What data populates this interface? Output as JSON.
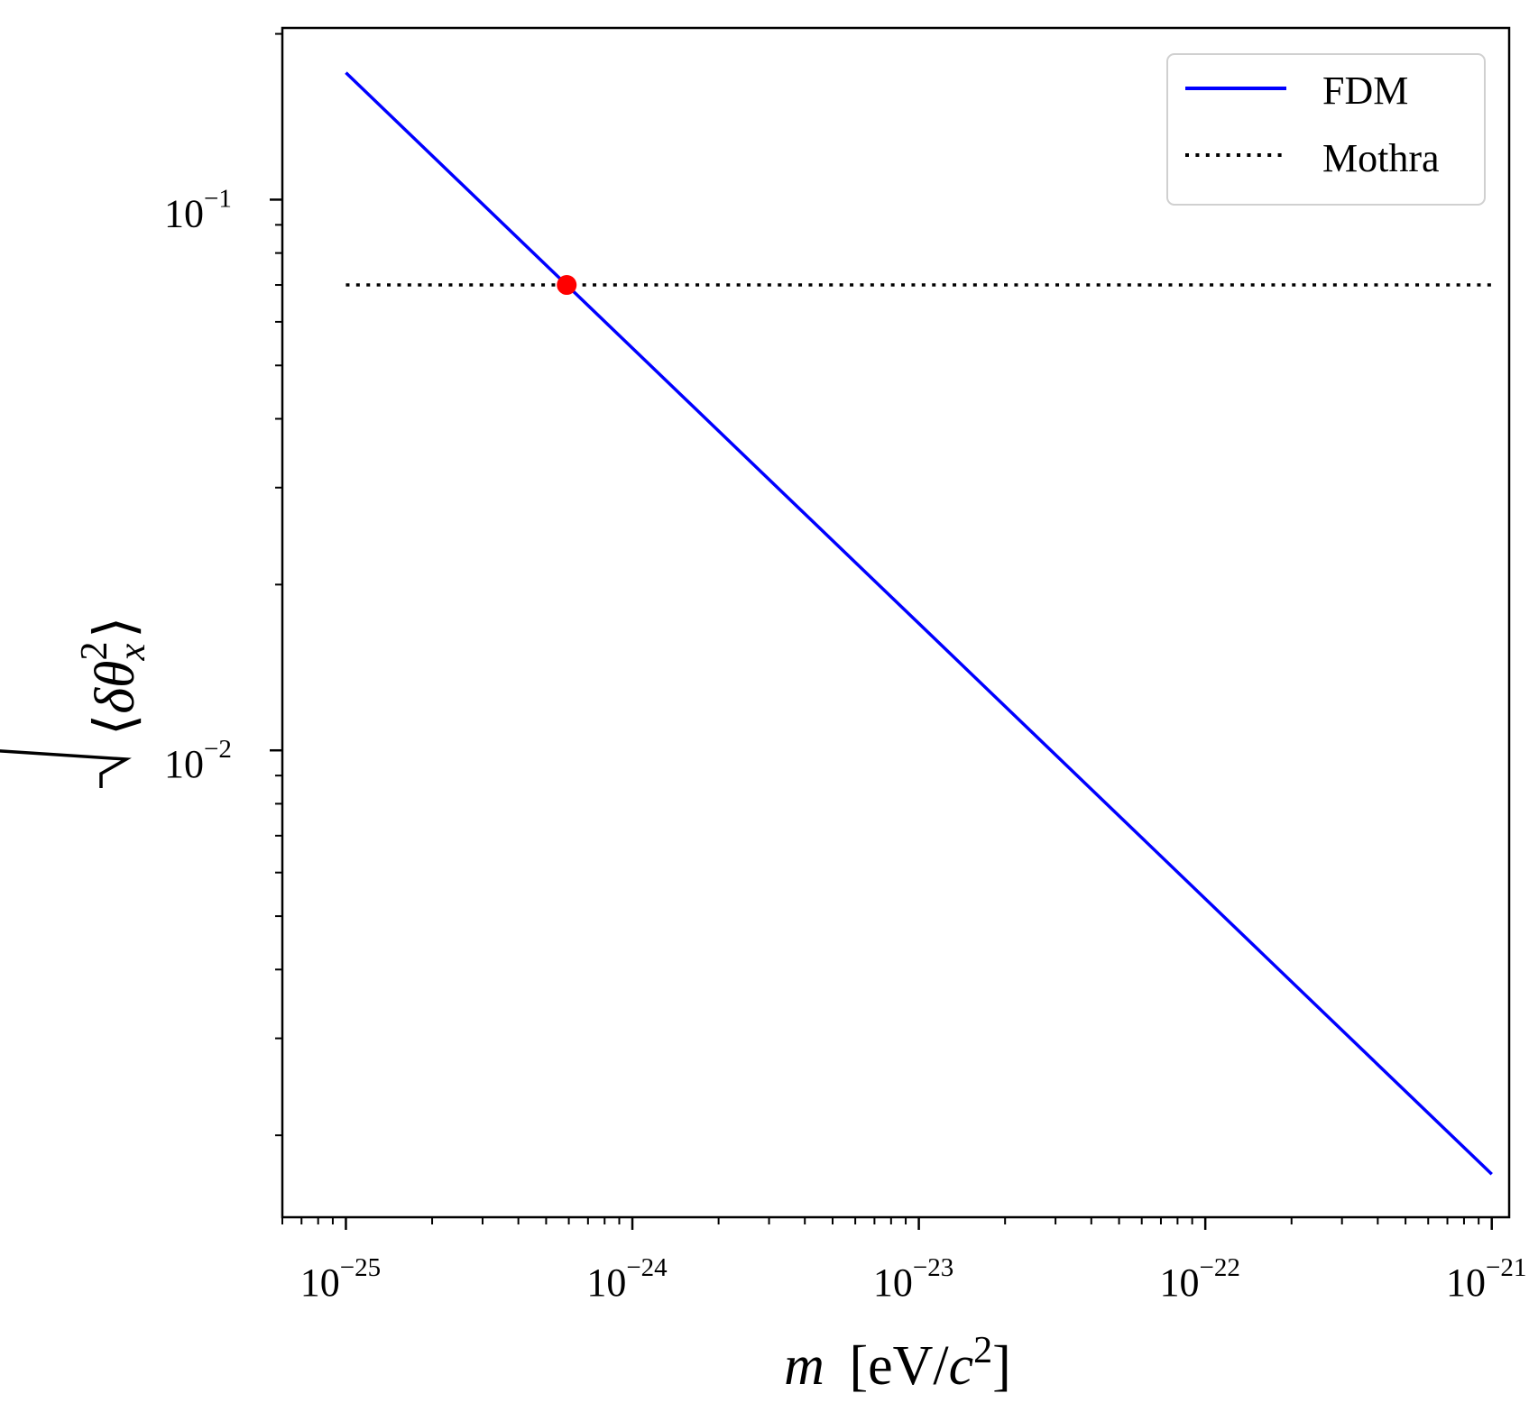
{
  "chart_data": {
    "type": "line",
    "title": "",
    "xlabel": {
      "var": "m",
      "unit_prefix": "[eV/",
      "unit_var": "c",
      "unit_exp": "2",
      "unit_suffix": "]"
    },
    "ylabel": {
      "open": "⟨",
      "delta": "δ",
      "theta": "θ",
      "sup": "2",
      "sub": "x",
      "close": "⟩"
    },
    "xscale": "log",
    "yscale": "log",
    "xlim": [
      6e-26,
      1.15e-21
    ],
    "ylim": [
      0.00142,
      0.205
    ],
    "grid": false,
    "x_ticks": [
      {
        "value": 1e-25,
        "base": "10",
        "exp": "−25"
      },
      {
        "value": 1e-24,
        "base": "10",
        "exp": "−24"
      },
      {
        "value": 1e-23,
        "base": "10",
        "exp": "−23"
      },
      {
        "value": 1e-22,
        "base": "10",
        "exp": "−22"
      },
      {
        "value": 1e-21,
        "base": "10",
        "exp": "−21"
      }
    ],
    "y_ticks": [
      {
        "value": 0.01,
        "base": "10",
        "exp": "−2"
      },
      {
        "value": 0.1,
        "base": "10",
        "exp": "−1"
      }
    ],
    "series": [
      {
        "name": "FDM",
        "style": "solid",
        "color": "#0000ff",
        "x": [
          1e-25,
          1e-21
        ],
        "y": [
          0.17,
          0.0017
        ]
      },
      {
        "name": "Mothra",
        "style": "dotted",
        "color": "#000000",
        "x": [
          1e-25,
          1e-21
        ],
        "y": [
          0.07,
          0.07
        ]
      }
    ],
    "markers": [
      {
        "x": 5.9e-25,
        "y": 0.07,
        "color": "#ff0000"
      }
    ],
    "legend": {
      "location": "upper right",
      "entries": [
        "FDM",
        "Mothra"
      ]
    }
  }
}
